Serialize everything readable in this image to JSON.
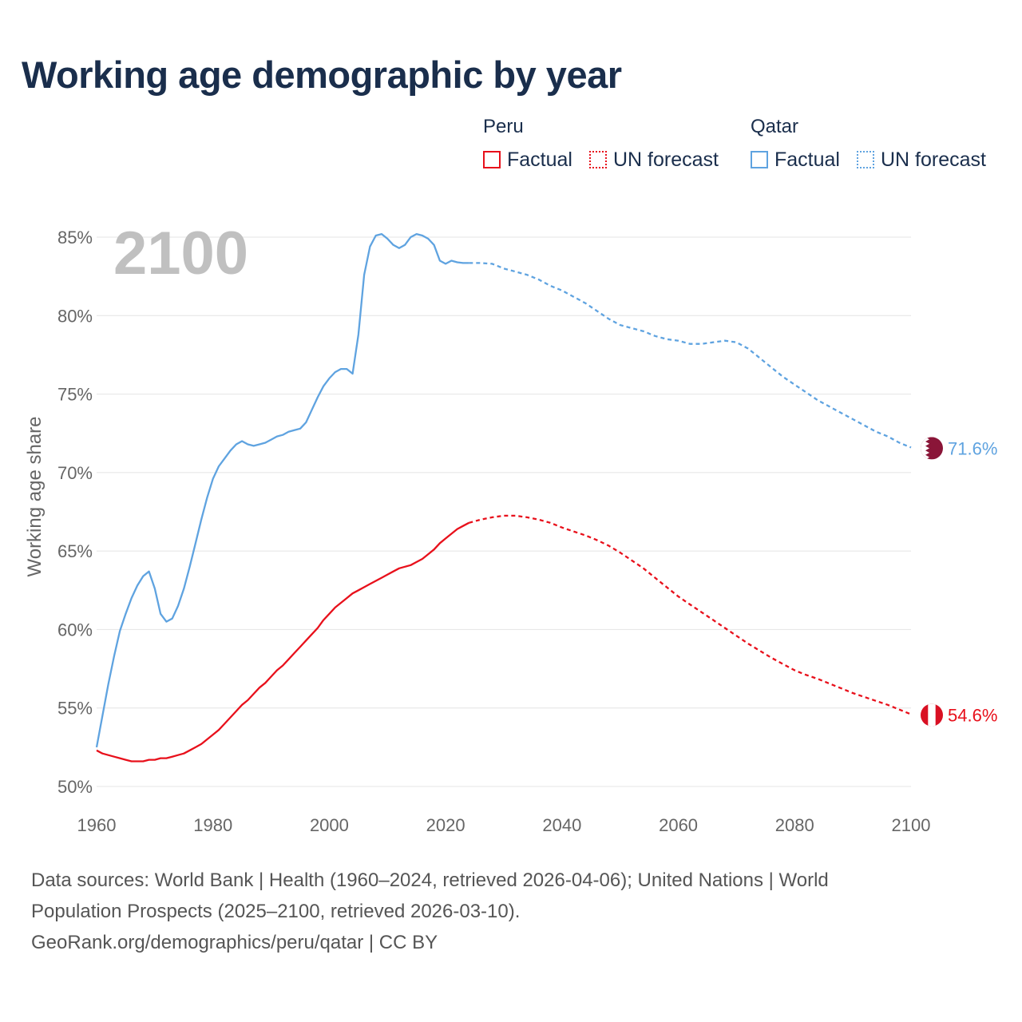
{
  "header": {
    "title": "Working age demographic by year"
  },
  "legend": {
    "groups": [
      {
        "country": "Peru",
        "factual_label": "Factual",
        "forecast_label": "UN forecast",
        "color": "#e8101b"
      },
      {
        "country": "Qatar",
        "factual_label": "Factual",
        "forecast_label": "UN forecast",
        "color": "#5fa3e0"
      }
    ]
  },
  "chart_data": {
    "type": "line",
    "ylabel": "Working age share",
    "xlabel": "",
    "year_display": "2100",
    "xlim": [
      1960,
      2100
    ],
    "ylim": [
      50,
      85
    ],
    "x_ticks": [
      "1960",
      "1980",
      "2000",
      "2020",
      "2040",
      "2060",
      "2080",
      "2100"
    ],
    "y_ticks": [
      "50%",
      "55%",
      "60%",
      "65%",
      "70%",
      "75%",
      "80%",
      "85%"
    ],
    "grid": true,
    "factual_range": [
      1960,
      2024
    ],
    "forecast_range": [
      2024,
      2100
    ],
    "series": [
      {
        "name": "Peru",
        "color": "#e8101b",
        "flag_colors": [
          "#d91023",
          "#ffffff"
        ],
        "end_label": "54.6%",
        "points": [
          [
            1960,
            52.3
          ],
          [
            1961,
            52.1
          ],
          [
            1962,
            52.0
          ],
          [
            1963,
            51.9
          ],
          [
            1964,
            51.8
          ],
          [
            1965,
            51.7
          ],
          [
            1966,
            51.6
          ],
          [
            1967,
            51.6
          ],
          [
            1968,
            51.6
          ],
          [
            1969,
            51.7
          ],
          [
            1970,
            51.7
          ],
          [
            1971,
            51.8
          ],
          [
            1972,
            51.8
          ],
          [
            1973,
            51.9
          ],
          [
            1974,
            52.0
          ],
          [
            1975,
            52.1
          ],
          [
            1976,
            52.3
          ],
          [
            1977,
            52.5
          ],
          [
            1978,
            52.7
          ],
          [
            1979,
            53.0
          ],
          [
            1980,
            53.3
          ],
          [
            1981,
            53.6
          ],
          [
            1982,
            54.0
          ],
          [
            1983,
            54.4
          ],
          [
            1984,
            54.8
          ],
          [
            1985,
            55.2
          ],
          [
            1986,
            55.5
          ],
          [
            1987,
            55.9
          ],
          [
            1988,
            56.3
          ],
          [
            1989,
            56.6
          ],
          [
            1990,
            57.0
          ],
          [
            1991,
            57.4
          ],
          [
            1992,
            57.7
          ],
          [
            1993,
            58.1
          ],
          [
            1994,
            58.5
          ],
          [
            1995,
            58.9
          ],
          [
            1996,
            59.3
          ],
          [
            1997,
            59.7
          ],
          [
            1998,
            60.1
          ],
          [
            1999,
            60.6
          ],
          [
            2000,
            61.0
          ],
          [
            2001,
            61.4
          ],
          [
            2002,
            61.7
          ],
          [
            2003,
            62.0
          ],
          [
            2004,
            62.3
          ],
          [
            2005,
            62.5
          ],
          [
            2006,
            62.7
          ],
          [
            2007,
            62.9
          ],
          [
            2008,
            63.1
          ],
          [
            2009,
            63.3
          ],
          [
            2010,
            63.5
          ],
          [
            2011,
            63.7
          ],
          [
            2012,
            63.9
          ],
          [
            2013,
            64.0
          ],
          [
            2014,
            64.1
          ],
          [
            2015,
            64.3
          ],
          [
            2016,
            64.5
          ],
          [
            2017,
            64.8
          ],
          [
            2018,
            65.1
          ],
          [
            2019,
            65.5
          ],
          [
            2020,
            65.8
          ],
          [
            2021,
            66.1
          ],
          [
            2022,
            66.4
          ],
          [
            2023,
            66.6
          ],
          [
            2024,
            66.8
          ],
          [
            2026,
            67.0
          ],
          [
            2028,
            67.15
          ],
          [
            2030,
            67.25
          ],
          [
            2032,
            67.25
          ],
          [
            2034,
            67.15
          ],
          [
            2036,
            67.0
          ],
          [
            2038,
            66.8
          ],
          [
            2040,
            66.5
          ],
          [
            2042,
            66.25
          ],
          [
            2044,
            66.0
          ],
          [
            2046,
            65.7
          ],
          [
            2048,
            65.35
          ],
          [
            2050,
            64.9
          ],
          [
            2052,
            64.4
          ],
          [
            2054,
            63.9
          ],
          [
            2056,
            63.3
          ],
          [
            2058,
            62.7
          ],
          [
            2060,
            62.1
          ],
          [
            2062,
            61.6
          ],
          [
            2064,
            61.1
          ],
          [
            2066,
            60.6
          ],
          [
            2068,
            60.1
          ],
          [
            2070,
            59.6
          ],
          [
            2072,
            59.1
          ],
          [
            2074,
            58.65
          ],
          [
            2076,
            58.2
          ],
          [
            2078,
            57.8
          ],
          [
            2080,
            57.4
          ],
          [
            2082,
            57.1
          ],
          [
            2084,
            56.85
          ],
          [
            2086,
            56.55
          ],
          [
            2088,
            56.25
          ],
          [
            2090,
            55.95
          ],
          [
            2092,
            55.7
          ],
          [
            2094,
            55.45
          ],
          [
            2096,
            55.2
          ],
          [
            2098,
            54.9
          ],
          [
            2100,
            54.6
          ]
        ]
      },
      {
        "name": "Qatar",
        "color": "#5fa3e0",
        "flag_colors": [
          "#8a1538",
          "#ffffff"
        ],
        "end_label": "71.6%",
        "points": [
          [
            1960,
            52.5
          ],
          [
            1961,
            54.5
          ],
          [
            1962,
            56.5
          ],
          [
            1963,
            58.3
          ],
          [
            1964,
            59.9
          ],
          [
            1965,
            61.0
          ],
          [
            1966,
            62.0
          ],
          [
            1967,
            62.8
          ],
          [
            1968,
            63.4
          ],
          [
            1969,
            63.7
          ],
          [
            1970,
            62.6
          ],
          [
            1971,
            61.0
          ],
          [
            1972,
            60.5
          ],
          [
            1973,
            60.7
          ],
          [
            1974,
            61.5
          ],
          [
            1975,
            62.6
          ],
          [
            1976,
            64.0
          ],
          [
            1977,
            65.5
          ],
          [
            1978,
            67.0
          ],
          [
            1979,
            68.4
          ],
          [
            1980,
            69.6
          ],
          [
            1981,
            70.4
          ],
          [
            1982,
            70.9
          ],
          [
            1983,
            71.4
          ],
          [
            1984,
            71.8
          ],
          [
            1985,
            72.0
          ],
          [
            1986,
            71.8
          ],
          [
            1987,
            71.7
          ],
          [
            1988,
            71.8
          ],
          [
            1989,
            71.9
          ],
          [
            1990,
            72.1
          ],
          [
            1991,
            72.3
          ],
          [
            1992,
            72.4
          ],
          [
            1993,
            72.6
          ],
          [
            1994,
            72.7
          ],
          [
            1995,
            72.8
          ],
          [
            1996,
            73.2
          ],
          [
            1997,
            74.0
          ],
          [
            1998,
            74.8
          ],
          [
            1999,
            75.5
          ],
          [
            2000,
            76.0
          ],
          [
            2001,
            76.4
          ],
          [
            2002,
            76.6
          ],
          [
            2003,
            76.6
          ],
          [
            2004,
            76.3
          ],
          [
            2005,
            78.8
          ],
          [
            2006,
            82.6
          ],
          [
            2007,
            84.4
          ],
          [
            2008,
            85.1
          ],
          [
            2009,
            85.2
          ],
          [
            2010,
            84.9
          ],
          [
            2011,
            84.5
          ],
          [
            2012,
            84.3
          ],
          [
            2013,
            84.5
          ],
          [
            2014,
            85.0
          ],
          [
            2015,
            85.2
          ],
          [
            2016,
            85.1
          ],
          [
            2017,
            84.9
          ],
          [
            2018,
            84.5
          ],
          [
            2019,
            83.5
          ],
          [
            2020,
            83.3
          ],
          [
            2021,
            83.5
          ],
          [
            2022,
            83.4
          ],
          [
            2023,
            83.35
          ],
          [
            2024,
            83.35
          ],
          [
            2026,
            83.35
          ],
          [
            2028,
            83.3
          ],
          [
            2030,
            83.0
          ],
          [
            2032,
            82.8
          ],
          [
            2034,
            82.6
          ],
          [
            2036,
            82.3
          ],
          [
            2038,
            81.9
          ],
          [
            2040,
            81.6
          ],
          [
            2042,
            81.2
          ],
          [
            2044,
            80.8
          ],
          [
            2046,
            80.3
          ],
          [
            2048,
            79.8
          ],
          [
            2050,
            79.4
          ],
          [
            2052,
            79.2
          ],
          [
            2054,
            79.0
          ],
          [
            2056,
            78.7
          ],
          [
            2058,
            78.5
          ],
          [
            2060,
            78.4
          ],
          [
            2062,
            78.2
          ],
          [
            2064,
            78.2
          ],
          [
            2066,
            78.3
          ],
          [
            2068,
            78.4
          ],
          [
            2070,
            78.3
          ],
          [
            2072,
            77.9
          ],
          [
            2074,
            77.3
          ],
          [
            2076,
            76.7
          ],
          [
            2078,
            76.1
          ],
          [
            2080,
            75.6
          ],
          [
            2082,
            75.1
          ],
          [
            2084,
            74.6
          ],
          [
            2086,
            74.2
          ],
          [
            2088,
            73.8
          ],
          [
            2090,
            73.4
          ],
          [
            2092,
            73.0
          ],
          [
            2094,
            72.6
          ],
          [
            2096,
            72.3
          ],
          [
            2098,
            71.9
          ],
          [
            2100,
            71.6
          ]
        ]
      }
    ]
  },
  "footer": {
    "sources_line1": "Data sources: World Bank | Health (1960–2024, retrieved 2026-04-06); United Nations | World",
    "sources_line2": "Population Prospects (2025–2100, retrieved 2026-03-10).",
    "credit": "GeoRank.org/demographics/peru/qatar | CC BY"
  }
}
